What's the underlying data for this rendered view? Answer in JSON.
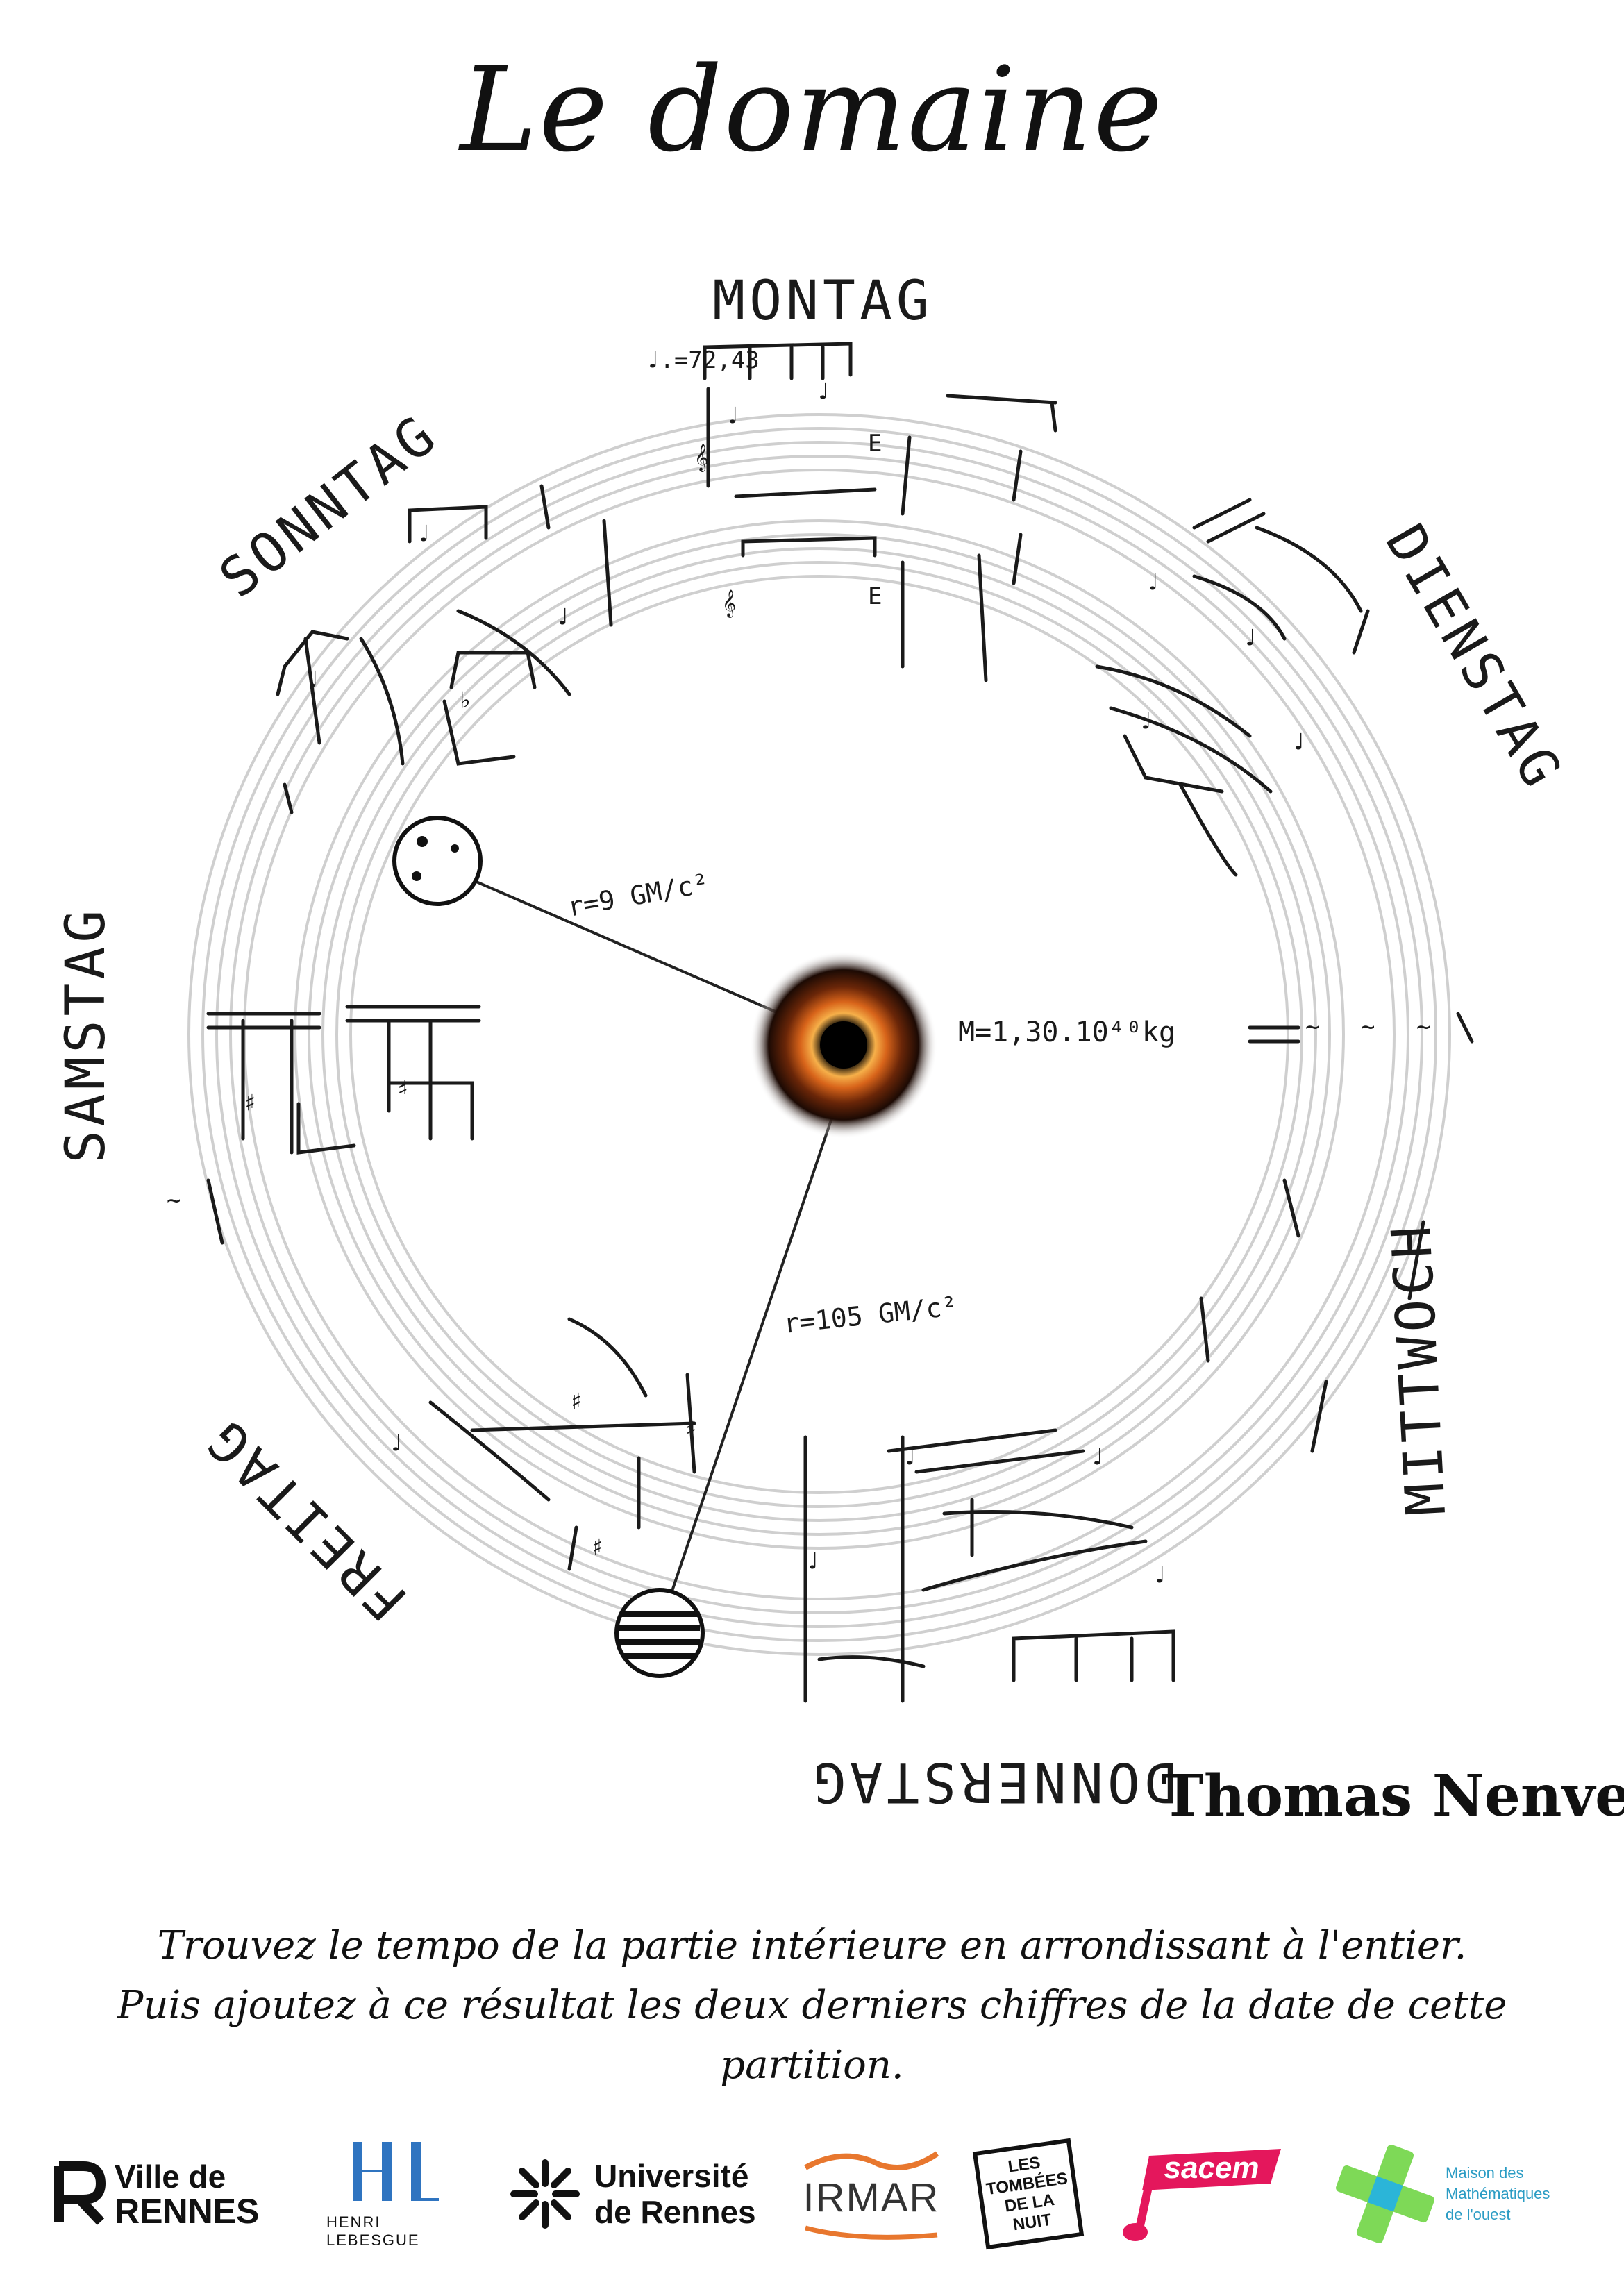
{
  "title": "Le domaine",
  "days": {
    "montag": "MONTAG",
    "dienstag": "DIENSTAG",
    "mittwoch": "MITTWOCH",
    "donnerstag": "DONNERSTAG",
    "freitag": "FREITAG",
    "samstag": "SAMSTAG",
    "sonntag": "SONNTAG"
  },
  "annotations": {
    "tempo": "♩.=72,43",
    "mass": "M=1,30.10⁴⁰kg",
    "inner_radius": "r=9 GM/c²",
    "outer_radius": "r=105 GM/c²"
  },
  "signature": "Thomas Nenvet",
  "caption": {
    "line1": "Trouvez le tempo de la partie intérieure en arrondissant à l'entier.",
    "line2": "Puis ajoutez à ce résultat les deux derniers chiffres de la date de cette partition."
  },
  "logos": {
    "ville_line1": "Ville de",
    "ville_line2": "RENNES",
    "lebesgue_line1": "HENRI LEBESGUE",
    "univ_line1": "Université",
    "univ_line2": "de Rennes",
    "irmar": "IRMAR",
    "tombees": "LES TOMBÉES DE LA NUIT",
    "sacem": "sacem",
    "mmo_line1": "Maison des",
    "mmo_line2": "Mathématiques",
    "mmo_line3": "de l'ouest"
  },
  "colors": {
    "black_hole_ring": "#e07a1f",
    "irmar": "#e8772e",
    "sacem": "#e4175c",
    "mmo": "#7ed957",
    "lebesgue": "#2f74c0"
  }
}
